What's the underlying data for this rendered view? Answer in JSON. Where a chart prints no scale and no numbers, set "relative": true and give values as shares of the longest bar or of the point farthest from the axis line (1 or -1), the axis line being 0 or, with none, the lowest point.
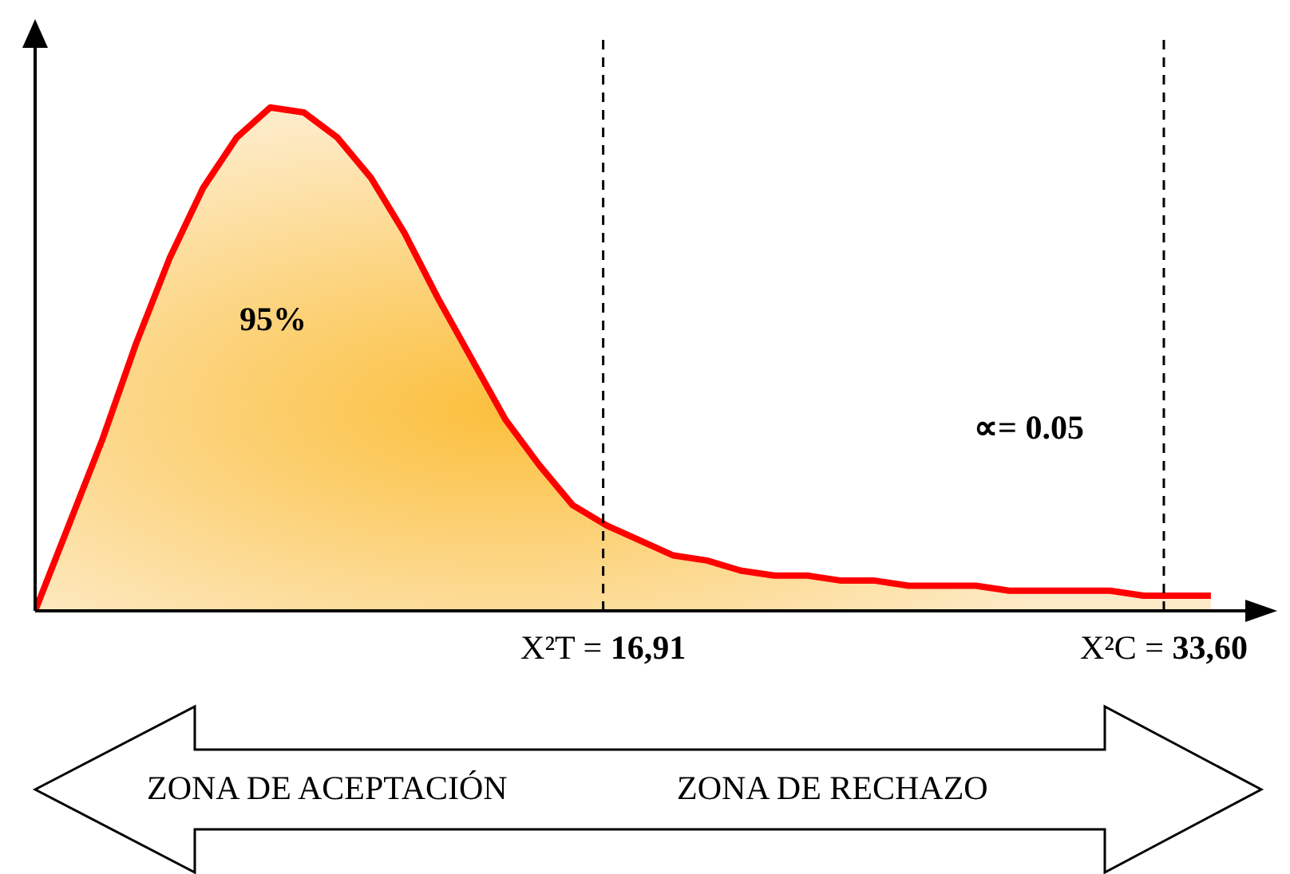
{
  "chart_data": {
    "type": "area",
    "relative": true,
    "x": [
      0,
      1,
      2,
      3,
      4,
      5,
      6,
      7,
      8,
      9,
      10,
      11,
      12,
      13,
      14,
      15,
      16,
      17,
      18,
      19,
      20,
      21,
      22,
      23,
      24,
      25,
      26,
      27,
      28,
      29,
      30,
      31,
      32,
      33,
      34,
      35
    ],
    "xlim": [
      0,
      36.5
    ],
    "xticks": [
      {
        "value": 16.91,
        "label": "X²T = 16,91"
      },
      {
        "value": 33.6,
        "label": "X²C = 33,60"
      }
    ],
    "series": [
      {
        "color": "#ff0000",
        "values": [
          0,
          0.17,
          0.34,
          0.53,
          0.7,
          0.84,
          0.94,
          1,
          0.99,
          0.94,
          0.86,
          0.75,
          0.62,
          0.5,
          0.38,
          0.29,
          0.21,
          0.17,
          0.14,
          0.11,
          0.1,
          0.08,
          0.07,
          0.07,
          0.06,
          0.06,
          0.05,
          0.05,
          0.05,
          0.04,
          0.04,
          0.04,
          0.04,
          0.03,
          0.03,
          0.03
        ]
      }
    ],
    "ref_lines": [
      {
        "axis": "x",
        "value": 16.91,
        "line_style": "dashed"
      },
      {
        "axis": "x",
        "value": 33.6,
        "line_style": "dashed"
      }
    ],
    "annotations": [
      "95%",
      "∝= 0.05",
      "ZONA DE ACEPTACIÓN",
      "ZONA DE RECHAZO"
    ]
  }
}
